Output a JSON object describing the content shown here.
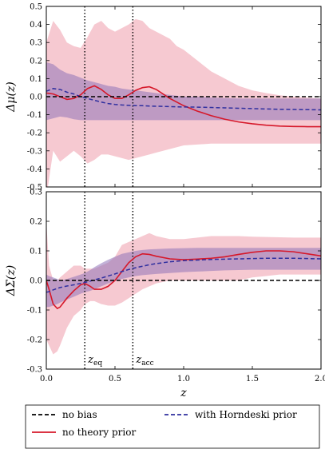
{
  "chart_data": [
    {
      "type": "line",
      "panel": "top",
      "ylabel": "Δμ(z)",
      "xlim": [
        0,
        2.0
      ],
      "ylim": [
        -0.5,
        0.5
      ],
      "yticks": [
        "0.5",
        "0.4",
        "0.3",
        "0.2",
        "0.1",
        "0.0",
        "-0.1",
        "-0.2",
        "-0.3",
        "-0.4",
        "-0.5"
      ],
      "ytick_values": [
        0.5,
        0.4,
        0.3,
        0.2,
        0.1,
        0.0,
        -0.1,
        -0.2,
        -0.3,
        -0.4,
        -0.5
      ],
      "x": [
        0.0,
        0.05,
        0.1,
        0.15,
        0.2,
        0.25,
        0.3,
        0.35,
        0.4,
        0.45,
        0.5,
        0.55,
        0.6,
        0.65,
        0.7,
        0.75,
        0.8,
        0.85,
        0.9,
        0.95,
        1.0,
        1.1,
        1.2,
        1.3,
        1.4,
        1.5,
        1.6,
        1.7,
        1.8,
        1.9,
        2.0
      ],
      "series": [
        {
          "name": "no theory prior",
          "style": "solid",
          "color": "#d6182a",
          "values": [
            0.02,
            0.015,
            0.0,
            -0.015,
            -0.01,
            0.01,
            0.045,
            0.06,
            0.04,
            0.01,
            -0.01,
            -0.01,
            0.01,
            0.035,
            0.05,
            0.055,
            0.04,
            0.015,
            -0.01,
            -0.03,
            -0.05,
            -0.08,
            -0.105,
            -0.125,
            -0.14,
            -0.15,
            -0.158,
            -0.163,
            -0.165,
            -0.166,
            -0.166
          ]
        },
        {
          "name": "with Horndeski prior",
          "style": "dashed",
          "color": "#2f2f9f",
          "values": [
            0.03,
            0.045,
            0.04,
            0.025,
            0.015,
            0.0,
            -0.01,
            -0.02,
            -0.03,
            -0.038,
            -0.043,
            -0.046,
            -0.048,
            -0.05,
            -0.05,
            -0.052,
            -0.053,
            -0.054,
            -0.055,
            -0.056,
            -0.057,
            -0.058,
            -0.06,
            -0.062,
            -0.064,
            -0.066,
            -0.068,
            -0.07,
            -0.071,
            -0.072,
            -0.073
          ]
        },
        {
          "name": "no bias",
          "style": "dashed",
          "color": "#000000",
          "values": [
            0,
            0,
            0,
            0,
            0,
            0,
            0,
            0,
            0,
            0,
            0,
            0,
            0,
            0,
            0,
            0,
            0,
            0,
            0,
            0,
            0,
            0,
            0,
            0,
            0,
            0,
            0,
            0,
            0,
            0,
            0
          ]
        }
      ],
      "bands": [
        {
          "of": "no theory prior",
          "color": "#f4bcc6",
          "upper": [
            0.3,
            0.42,
            0.37,
            0.3,
            0.28,
            0.27,
            0.33,
            0.4,
            0.42,
            0.38,
            0.36,
            0.38,
            0.4,
            0.43,
            0.42,
            0.38,
            0.36,
            0.34,
            0.32,
            0.28,
            0.26,
            0.2,
            0.14,
            0.1,
            0.06,
            0.035,
            0.02,
            0.008,
            0.0,
            -0.005,
            -0.01
          ],
          "lower": [
            -0.56,
            -0.3,
            -0.36,
            -0.33,
            -0.3,
            -0.33,
            -0.37,
            -0.35,
            -0.32,
            -0.32,
            -0.33,
            -0.34,
            -0.35,
            -0.34,
            -0.33,
            -0.32,
            -0.31,
            -0.3,
            -0.29,
            -0.28,
            -0.27,
            -0.265,
            -0.26,
            -0.26,
            -0.26,
            -0.26,
            -0.26,
            -0.26,
            -0.26,
            -0.26,
            -0.26
          ]
        },
        {
          "of": "with Horndeski prior",
          "color": "#8f73b8",
          "upper": [
            0.19,
            0.18,
            0.15,
            0.13,
            0.12,
            0.105,
            0.09,
            0.08,
            0.07,
            0.06,
            0.055,
            0.045,
            0.04,
            0.035,
            0.03,
            0.025,
            0.02,
            0.015,
            0.01,
            0.005,
            0.0,
            0.0,
            -0.005,
            -0.008,
            -0.01,
            -0.01,
            -0.01,
            -0.01,
            -0.01,
            -0.01,
            -0.01
          ],
          "lower": [
            -0.13,
            -0.12,
            -0.11,
            -0.115,
            -0.125,
            -0.13,
            -0.13,
            -0.13,
            -0.13,
            -0.13,
            -0.13,
            -0.13,
            -0.13,
            -0.13,
            -0.13,
            -0.13,
            -0.13,
            -0.13,
            -0.13,
            -0.13,
            -0.13,
            -0.13,
            -0.13,
            -0.13,
            -0.13,
            -0.13,
            -0.13,
            -0.13,
            -0.13,
            -0.13,
            -0.13
          ]
        }
      ]
    },
    {
      "type": "line",
      "panel": "bottom",
      "ylabel": "ΔΣ(z)",
      "xlabel": "z",
      "xlim": [
        0,
        2.0
      ],
      "ylim": [
        -0.3,
        0.3
      ],
      "xticks": [
        "0.0",
        "0.5",
        "1.0",
        "1.5",
        "2.0"
      ],
      "xtick_values": [
        0.0,
        0.5,
        1.0,
        1.5,
        2.0
      ],
      "yticks": [
        "0.3",
        "0.2",
        "0.1",
        "0.0",
        "-0.1",
        "-0.2",
        "-0.3"
      ],
      "ytick_values": [
        0.3,
        0.2,
        0.1,
        0.0,
        -0.1,
        -0.2,
        -0.3
      ],
      "x": [
        0.0,
        0.02,
        0.05,
        0.08,
        0.1,
        0.15,
        0.2,
        0.25,
        0.28,
        0.32,
        0.35,
        0.4,
        0.45,
        0.5,
        0.55,
        0.6,
        0.65,
        0.7,
        0.75,
        0.8,
        0.9,
        1.0,
        1.1,
        1.2,
        1.3,
        1.4,
        1.5,
        1.6,
        1.7,
        1.8,
        1.9,
        2.0
      ],
      "series": [
        {
          "name": "no theory prior",
          "style": "solid",
          "color": "#d6182a",
          "values": [
            0.0,
            -0.03,
            -0.08,
            -0.095,
            -0.09,
            -0.06,
            -0.035,
            -0.015,
            -0.01,
            -0.02,
            -0.03,
            -0.03,
            -0.02,
            0.0,
            0.03,
            0.06,
            0.08,
            0.09,
            0.088,
            0.082,
            0.073,
            0.07,
            0.072,
            0.075,
            0.08,
            0.088,
            0.095,
            0.1,
            0.1,
            0.097,
            0.09,
            0.083
          ]
        },
        {
          "name": "with Horndeski prior",
          "style": "dashed",
          "color": "#2f2f9f",
          "values": [
            -0.04,
            -0.038,
            -0.032,
            -0.027,
            -0.024,
            -0.019,
            -0.015,
            -0.01,
            -0.007,
            -0.002,
            0.002,
            0.008,
            0.015,
            0.022,
            0.03,
            0.037,
            0.043,
            0.048,
            0.053,
            0.057,
            0.063,
            0.067,
            0.069,
            0.071,
            0.072,
            0.073,
            0.074,
            0.075,
            0.075,
            0.075,
            0.074,
            0.073
          ]
        },
        {
          "name": "no bias",
          "style": "dashed",
          "color": "#000000",
          "values": [
            0,
            0,
            0,
            0,
            0,
            0,
            0,
            0,
            0,
            0,
            0,
            0,
            0,
            0,
            0,
            0,
            0,
            0,
            0,
            0,
            0,
            0,
            0,
            0,
            0,
            0,
            0,
            0,
            0,
            0,
            0,
            0
          ]
        }
      ],
      "bands": [
        {
          "of": "no theory prior",
          "color": "#f4bcc6",
          "upper": [
            0.2,
            0.05,
            0.0,
            0.0,
            0.01,
            0.03,
            0.05,
            0.05,
            0.04,
            0.04,
            0.04,
            0.05,
            0.06,
            0.08,
            0.12,
            0.13,
            0.14,
            0.15,
            0.16,
            0.15,
            0.14,
            0.14,
            0.145,
            0.15,
            0.15,
            0.15,
            0.148,
            0.147,
            0.146,
            0.145,
            0.145,
            0.145
          ],
          "lower": [
            -0.2,
            -0.22,
            -0.25,
            -0.24,
            -0.22,
            -0.16,
            -0.12,
            -0.1,
            -0.08,
            -0.07,
            -0.07,
            -0.08,
            -0.085,
            -0.085,
            -0.075,
            -0.06,
            -0.045,
            -0.03,
            -0.02,
            -0.01,
            0.0,
            0.0,
            0.0,
            0.0,
            0.0,
            0.0,
            0.01,
            0.015,
            0.02,
            0.02,
            0.02,
            0.02
          ]
        },
        {
          "of": "with Horndeski prior",
          "color": "#8f73b8",
          "upper": [
            0.02,
            0.015,
            0.01,
            0.005,
            0.0,
            0.005,
            0.012,
            0.02,
            0.025,
            0.035,
            0.045,
            0.058,
            0.07,
            0.08,
            0.09,
            0.095,
            0.1,
            0.103,
            0.105,
            0.106,
            0.108,
            0.109,
            0.11,
            0.11,
            0.11,
            0.11,
            0.11,
            0.11,
            0.11,
            0.11,
            0.11,
            0.11
          ],
          "lower": [
            -0.09,
            -0.09,
            -0.085,
            -0.08,
            -0.075,
            -0.065,
            -0.055,
            -0.045,
            -0.04,
            -0.035,
            -0.03,
            -0.02,
            -0.01,
            -0.002,
            0.005,
            0.01,
            0.015,
            0.018,
            0.02,
            0.022,
            0.025,
            0.028,
            0.03,
            0.032,
            0.034,
            0.035,
            0.036,
            0.036,
            0.036,
            0.036,
            0.036,
            0.036
          ]
        }
      ]
    }
  ],
  "annotations": {
    "z_eq": {
      "label": "z",
      "subscript": "eq",
      "x_value": 0.28
    },
    "z_acc": {
      "label": "z",
      "subscript": "acc",
      "x_value": 0.63
    }
  },
  "legend": {
    "placement": "bottom",
    "entries": [
      {
        "label": "no bias",
        "style": "dashed",
        "color": "#000000"
      },
      {
        "label": "with Horndeski prior",
        "style": "dashed",
        "color": "#2f2f9f"
      },
      {
        "label": "no theory prior",
        "style": "solid",
        "color": "#d6182a"
      }
    ]
  }
}
